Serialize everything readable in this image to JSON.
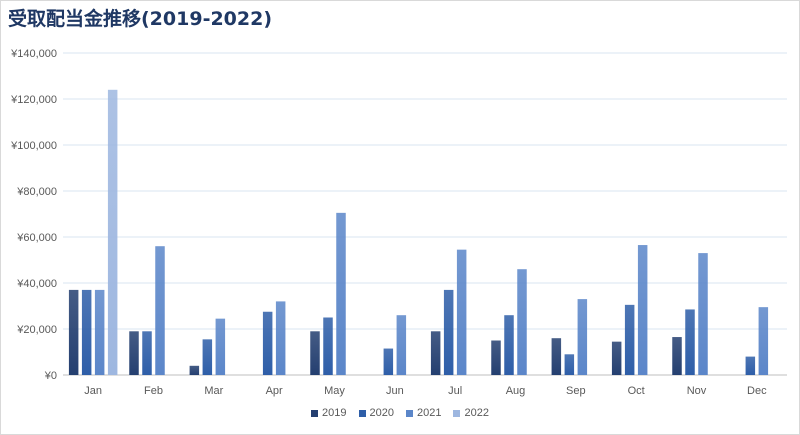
{
  "chart_data": {
    "type": "bar",
    "title": "受取配当金推移(2019-2022)",
    "xlabel": "",
    "ylabel": "",
    "categories": [
      "Jan",
      "Feb",
      "Mar",
      "Apr",
      "May",
      "Jun",
      "Jul",
      "Aug",
      "Sep",
      "Oct",
      "Nov",
      "Dec"
    ],
    "y_ticks": [
      "¥0",
      "¥20,000",
      "¥40,000",
      "¥60,000",
      "¥80,000",
      "¥100,000",
      "¥120,000",
      "¥140,000"
    ],
    "ylim": [
      0,
      140000
    ],
    "grid": true,
    "legend_position": "bottom",
    "series": [
      {
        "name": "2019",
        "color": "#243f70",
        "values": [
          37000,
          19000,
          4000,
          0,
          19000,
          0,
          19000,
          15000,
          16000,
          14500,
          16500,
          0
        ]
      },
      {
        "name": "2020",
        "color": "#2e5ea8",
        "values": [
          37000,
          19000,
          15500,
          27500,
          25000,
          11500,
          37000,
          26000,
          9000,
          30500,
          28500,
          8000
        ]
      },
      {
        "name": "2021",
        "color": "#5b86c9",
        "values": [
          37000,
          56000,
          24500,
          32000,
          70500,
          26000,
          54500,
          46000,
          33000,
          56500,
          53000,
          29500
        ]
      },
      {
        "name": "2022",
        "color": "#9eb7e0",
        "values": [
          124000,
          0,
          0,
          0,
          0,
          0,
          0,
          0,
          0,
          0,
          0,
          0
        ]
      }
    ]
  }
}
